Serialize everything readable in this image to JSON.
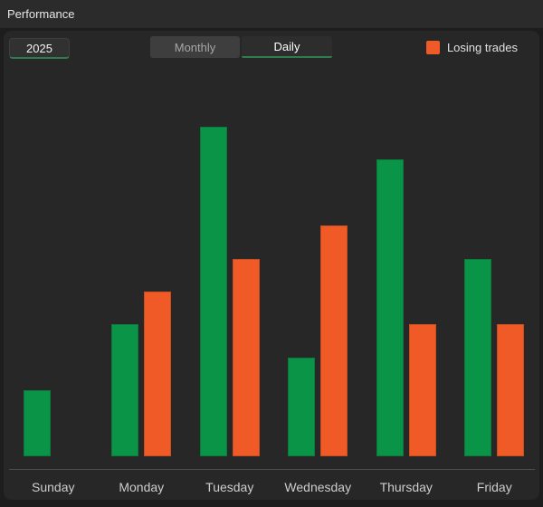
{
  "header": {
    "title": "Performance"
  },
  "controls": {
    "year_button": {
      "label": "2025",
      "active": true
    },
    "view_tabs": [
      {
        "label": "Monthly",
        "active": false
      },
      {
        "label": "Daily",
        "active": true
      }
    ],
    "legend": [
      {
        "label": "Losing trades",
        "color": "#ef5a26"
      }
    ]
  },
  "chart_data": {
    "type": "bar",
    "title": "Performance",
    "categories": [
      "Sunday",
      "Monday",
      "Tuesday",
      "Wednesday",
      "Thursday",
      "Friday"
    ],
    "series": [
      {
        "label": "",
        "color": "#0a9447",
        "border_color": "#0d7a3d",
        "values": [
          2,
          4,
          10,
          3,
          9,
          6
        ]
      },
      {
        "label": "Losing trades",
        "color": "#ef5a26",
        "border_color": "#c74e1f",
        "values": [
          0,
          5,
          6,
          7,
          4,
          4
        ]
      }
    ],
    "xlabel": "",
    "ylabel": "",
    "ylim": [
      0,
      10
    ],
    "grid": false,
    "y_axis_labels_visible": false,
    "legend_position": "top-right",
    "axis_line_color": "#4d4d4d"
  },
  "colors": {
    "page_bg": "#1d1d1d",
    "header_bg": "#2b2b2b",
    "panel_bg": "#272727",
    "active_underline": "#2e7d4f",
    "x_label_color": "#cdcdcd"
  }
}
